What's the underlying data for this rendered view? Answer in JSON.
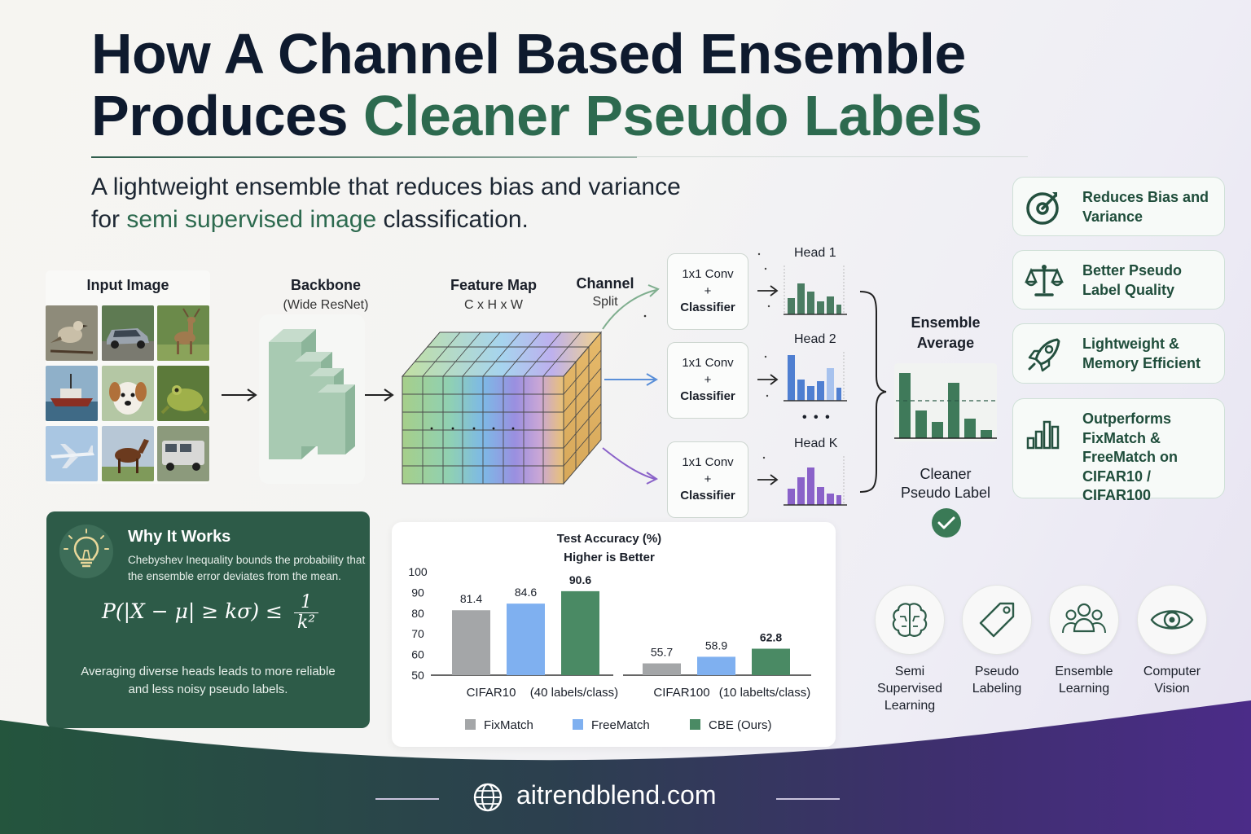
{
  "title": {
    "line1": "How A Channel Based Ensemble",
    "line2_plain": "Produces ",
    "line2_accent": "Cleaner Pseudo Labels"
  },
  "subtitle": {
    "line1": "A lightweight ensemble that reduces bias and variance",
    "line2_pre": "for ",
    "line2_accent": "semi supervised image",
    "line2_post": " classification."
  },
  "features": [
    {
      "icon": "target-icon",
      "text": "Reduces Bias and Variance"
    },
    {
      "icon": "balance-scale-icon",
      "text": "Better Pseudo Label Quality"
    },
    {
      "icon": "rocket-icon",
      "text": "Lightweight & Memory Efficient"
    },
    {
      "icon": "bar-chart-icon",
      "text": "Outperforms FixMatch & FreeMatch on CIFAR10 / CIFAR100"
    }
  ],
  "pipeline": {
    "input_label": "Input Image",
    "backbone_label": "Backbone",
    "backbone_sub": "(Wide ResNet)",
    "feature_label": "Feature Map",
    "feature_sub": "C x H x W",
    "split_label": "Channel",
    "split_sub": "Split",
    "conv_line1": "1x1 Conv",
    "conv_plus": "+",
    "conv_line2": "Classifier",
    "heads": [
      "Head 1",
      "Head 2",
      "Head K"
    ],
    "head_colors": [
      "#4a7c62",
      "#4f7fd1",
      "#8a62c9"
    ],
    "ellipsis": "• • •",
    "ensemble_line1": "Ensemble",
    "ensemble_line2": "Average",
    "cleaner_line1": "Cleaner",
    "cleaner_line2": "Pseudo Label"
  },
  "why": {
    "title": "Why It Works",
    "desc": "Chebyshev Inequality bounds the probability that the ensemble error deviates from the mean.",
    "formula_lhs": "P(|X − μ| ≥ kσ) ≤",
    "formula_num": "1",
    "formula_den": "k²",
    "foot": "Averaging diverse heads leads to more reliable and less noisy pseudo labels."
  },
  "chart_data": {
    "type": "bar",
    "title": "Test Accuracy (%)",
    "subtitle": "Higher is Better",
    "ylim": [
      50,
      100
    ],
    "yticks": [
      100,
      90,
      80,
      70,
      60,
      50
    ],
    "groups": [
      {
        "name": "CIFAR10",
        "detail": "(40 labels/class)"
      },
      {
        "name": "CIFAR100",
        "detail": "(10 labelts/class)"
      }
    ],
    "series": [
      {
        "name": "FixMatch",
        "color": "#a4a6a8",
        "values": [
          81.4,
          55.7
        ]
      },
      {
        "name": "FreeMatch",
        "color": "#7fb0f0",
        "values": [
          84.6,
          58.9
        ]
      },
      {
        "name": "CBE (Ours)",
        "color": "#4a8a64",
        "values": [
          90.6,
          62.8
        ]
      }
    ],
    "value_labels": [
      [
        "81.4",
        "55.7"
      ],
      [
        "84.6",
        "58.9"
      ],
      [
        "90.6",
        "62.8"
      ]
    ],
    "legend_position": "bottom"
  },
  "topics": [
    {
      "icon": "brain-icon",
      "line1": "Semi Supervised",
      "line2": "Learning"
    },
    {
      "icon": "tag-icon",
      "line1": "Pseudo",
      "line2": "Labeling"
    },
    {
      "icon": "people-icon",
      "line1": "Ensemble",
      "line2": "Learning"
    },
    {
      "icon": "eye-icon",
      "line1": "Computer",
      "line2": "Vision"
    }
  ],
  "footer": {
    "site": "aitrendblend.com"
  }
}
